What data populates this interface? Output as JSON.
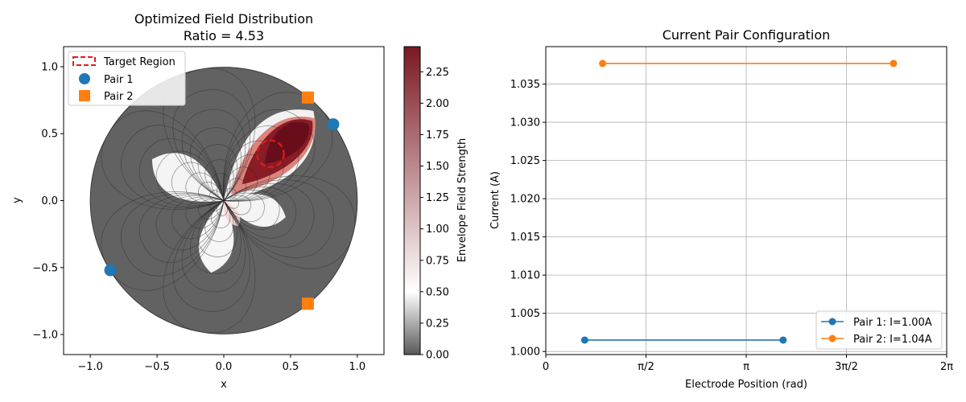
{
  "chart_data": [
    {
      "type": "heatmap",
      "title": "Optimized Field Distribution",
      "subtitle": "Ratio = 4.53",
      "xlabel": "x",
      "ylabel": "y",
      "xlim": [
        -1.2,
        1.2
      ],
      "ylim": [
        -1.15,
        1.15
      ],
      "xticks": [
        -1.0,
        -0.5,
        0.0,
        0.5,
        1.0
      ],
      "xtick_labels": [
        "−1.0",
        "−0.5",
        "0.0",
        "0.5",
        "1.0"
      ],
      "yticks": [
        -1.0,
        -0.5,
        0.0,
        0.5,
        1.0
      ],
      "ytick_labels": [
        "−1.0",
        "−0.5",
        "0.0",
        "0.5",
        "1.0"
      ],
      "colorbar": {
        "label": "Envelope Field Strength",
        "range": [
          0,
          2.45
        ],
        "ticks": [
          0.0,
          0.25,
          0.5,
          0.75,
          1.0,
          1.25,
          1.5,
          1.75,
          2.0,
          2.25
        ],
        "tick_labels": [
          "0.00",
          "0.25",
          "0.50",
          "0.75",
          "1.00",
          "1.25",
          "1.50",
          "1.75",
          "2.00",
          "2.25"
        ],
        "colors": [
          "#595959",
          "#ffffff",
          "#7a1820"
        ]
      },
      "target_region": {
        "label": "Target Region",
        "center": [
          0.35,
          0.35
        ],
        "radius": 0.1,
        "color": "#e31a1c"
      },
      "series": [
        {
          "name": "Pair 1",
          "marker": "circle",
          "color": "#1f77b4",
          "points": [
            [
              0.82,
              0.57
            ],
            [
              -0.85,
              -0.52
            ]
          ]
        },
        {
          "name": "Pair 2",
          "marker": "square",
          "color": "#ff7f0e",
          "points": [
            [
              0.63,
              0.77
            ],
            [
              0.63,
              -0.77
            ]
          ]
        }
      ],
      "legend": {
        "position": "top-left"
      },
      "grid": false
    },
    {
      "type": "line",
      "title": "Current Pair Configuration",
      "xlabel": "Electrode Position (rad)",
      "ylabel": "Current (A)",
      "xlim": [
        0,
        6.2832
      ],
      "ylim": [
        0.9996,
        1.0399
      ],
      "xticks": [
        0,
        1.5708,
        3.1416,
        4.7124,
        6.2832
      ],
      "xtick_labels": [
        "0",
        "π/2",
        "π",
        "3π/2",
        "2π"
      ],
      "yticks": [
        1.0,
        1.005,
        1.01,
        1.015,
        1.02,
        1.025,
        1.03,
        1.035
      ],
      "ytick_labels": [
        "1.000",
        "1.005",
        "1.010",
        "1.015",
        "1.020",
        "1.025",
        "1.030",
        "1.035"
      ],
      "series": [
        {
          "name": "Pair 1: I=1.00A",
          "color": "#1f77b4",
          "x": [
            0.61,
            3.72
          ],
          "y": [
            1.0015,
            1.0015
          ]
        },
        {
          "name": "Pair 2: I=1.04A",
          "color": "#ff7f0e",
          "x": [
            0.89,
            5.45
          ],
          "y": [
            1.0377,
            1.0377
          ]
        }
      ],
      "legend": {
        "position": "bottom-right"
      },
      "grid": true
    }
  ]
}
